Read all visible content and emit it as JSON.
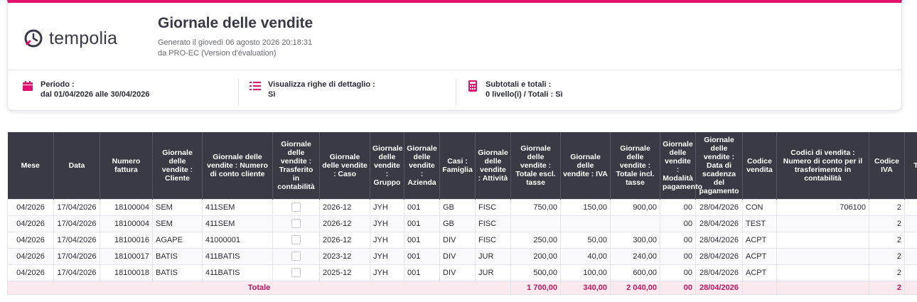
{
  "header": {
    "brand": "tempolia",
    "title": "Giornale delle vendite",
    "generated": "Generato il giovedì 06 agosto 2026 20:18:31",
    "generated_by": "da PRO-EC (Version d'évaluation)"
  },
  "options": {
    "period_label": "Periodo :",
    "period_value": "dal 01/04/2026 alle 30/04/2026",
    "detail_label": "Visualizza righe di dettaglio :",
    "detail_value": "Sì",
    "subtotal_label": "Subtotali e totali :",
    "subtotal_value": "0 livello(i) / Totali : Sì"
  },
  "colors": {
    "accent": "#e2136e",
    "header_bg": "#3a3a44",
    "total_bg": "#fbe9f0",
    "total_text": "#c2185b"
  },
  "table": {
    "columns": [
      "Mese",
      "Data",
      "Numero fattura",
      "Giornale delle vendite : Cliente",
      "Giornale delle vendite : Numero di conto cliente",
      "Giornale delle vendite : Trasferito in contabilità",
      "Giornale delle vendite : Caso",
      "Giornale delle vendite : Gruppo",
      "Giornale delle vendite : Azienda",
      "Casi : Famiglia",
      "Giornale delle vendite : Attività",
      "Giornale delle vendite : Totale escl. tasse",
      "Giornale delle vendite : IVA",
      "Giornale delle vendite : Totale incl. tasse",
      "Giornale delle vendite : Modalità pagamento",
      "Giornale delle vendite : Data di scadenza del pagamento",
      "Codice vendita",
      "Codici di vendita : Numero di conto per il trasferimento in contabilità",
      "Codice IVA",
      "T"
    ],
    "rows": [
      [
        "04/2026",
        "17/04/2026",
        "18100004",
        "SEM",
        "411SEM",
        "",
        "2026-12",
        "JYH",
        "001",
        "GB",
        "FISC",
        "750,00",
        "150,00",
        "900,00",
        "00",
        "28/04/2026",
        "CON",
        "706100",
        "2",
        ""
      ],
      [
        "04/2026",
        "17/04/2026",
        "18100004",
        "SEM",
        "411SEM",
        "",
        "2026-12",
        "JYH",
        "001",
        "GB",
        "FISC",
        "",
        "",
        "",
        "00",
        "28/04/2026",
        "TEST",
        "",
        "2",
        ""
      ],
      [
        "04/2026",
        "17/04/2026",
        "18100016",
        "AGAPE",
        "41000001",
        "",
        "2026-12",
        "JYH",
        "001",
        "DIV",
        "FISC",
        "250,00",
        "50,00",
        "300,00",
        "00",
        "28/04/2026",
        "ACPT",
        "",
        "2",
        ""
      ],
      [
        "04/2026",
        "17/04/2026",
        "18100017",
        "BATIS",
        "411BATIS",
        "",
        "2023-12",
        "JYH",
        "001",
        "DIV",
        "JUR",
        "200,00",
        "40,00",
        "240,00",
        "00",
        "28/04/2026",
        "ACPT",
        "",
        "2",
        ""
      ],
      [
        "04/2026",
        "17/04/2026",
        "18100018",
        "BATIS",
        "411BATIS",
        "",
        "2025-12",
        "JYH",
        "001",
        "DIV",
        "JUR",
        "500,00",
        "100,00",
        "600,00",
        "00",
        "28/04/2026",
        "ACPT",
        "",
        "2",
        ""
      ]
    ],
    "totals": {
      "label": "Totale",
      "excl": "1 700,00",
      "iva": "340,00",
      "incl": "2 040,00",
      "mode": "00",
      "date": "28/04/2026",
      "iva_code": "2"
    }
  }
}
